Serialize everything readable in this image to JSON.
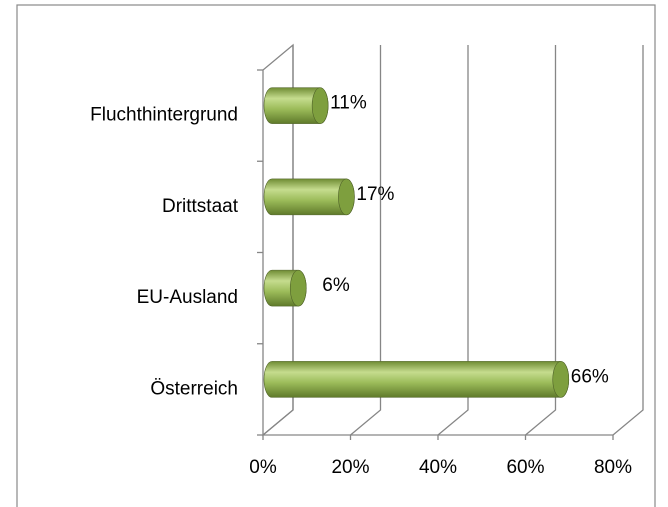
{
  "chart_data": {
    "type": "bar3d",
    "categories": [
      "Österreich",
      "EU-Ausland",
      "Drittstaat",
      "Fluchthintergrund"
    ],
    "values": [
      66,
      6,
      17,
      11
    ],
    "value_labels": [
      "66%",
      "6%",
      "17%",
      "11%"
    ],
    "color": "#9bbb59",
    "xlim": [
      0,
      80
    ],
    "xticks": [
      {
        "value": 0,
        "label": "0%"
      },
      {
        "value": 20,
        "label": "20%"
      },
      {
        "value": 40,
        "label": "40%"
      },
      {
        "value": 60,
        "label": "60%"
      },
      {
        "value": 80,
        "label": "80%"
      }
    ],
    "grid": true
  }
}
